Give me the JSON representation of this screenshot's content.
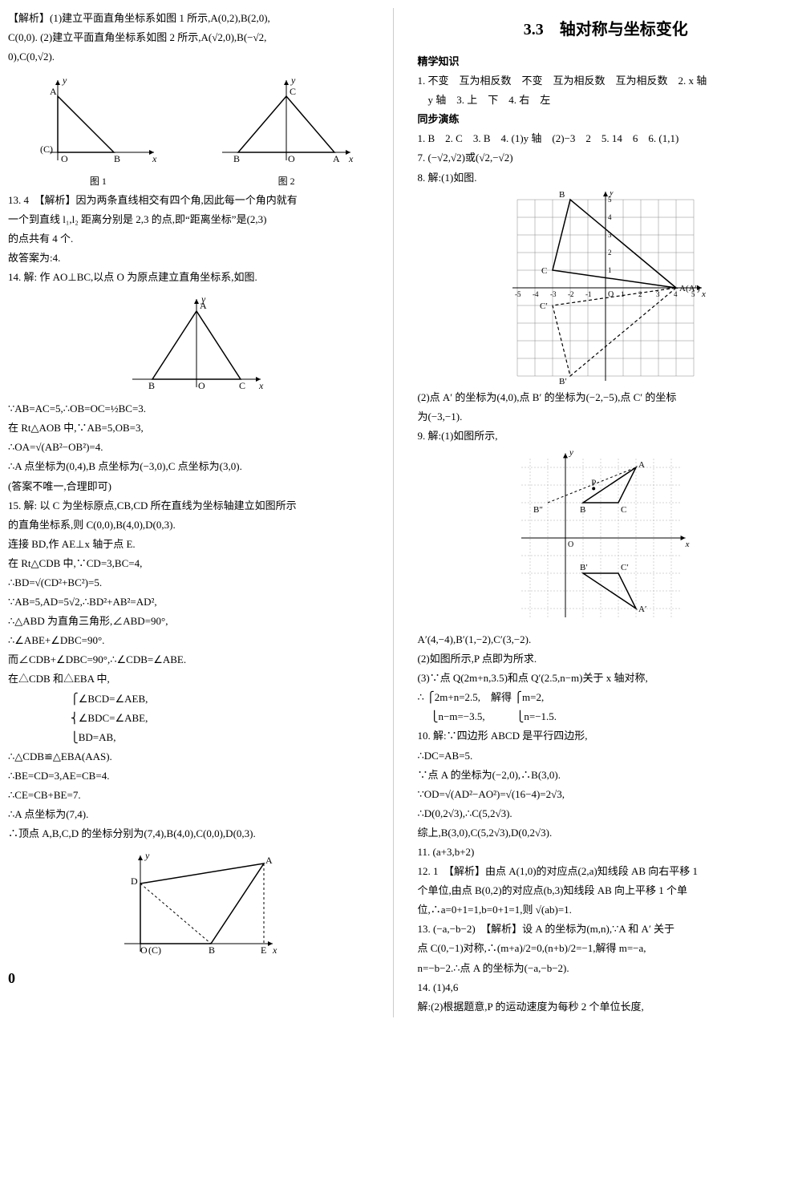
{
  "left": {
    "p1": "【解析】(1)建立平面直角坐标系如图 1 所示,A(0,2),B(2,0),",
    "p2": "C(0,0). (2)建立平面直角坐标系如图 2 所示,A(√2,0),B(−√2,",
    "p3": "0),C(0,√2).",
    "fig1_cap": "图 1",
    "fig2_cap": "图 2",
    "p13a": "13. 4　【解析】因为两条直线相交有四个角,因此每一个角内就有",
    "p13b": "一个到直线 l₁,l₂ 距离分别是 2,3 的点,即“距离坐标”是(2,3)",
    "p13c": "的点共有 4 个.",
    "p13d": "故答案为:4.",
    "p14a": "14. 解: 作 AO⊥BC,以点 O 为原点建立直角坐标系,如图.",
    "p14b": "∵AB=AC=5,∴OB=OC=½BC=3.",
    "p14c": "在 Rt△AOB 中,∵AB=5,OB=3,",
    "p14d": "∴OA=√(AB²−OB²)=4.",
    "p14e": "∴A 点坐标为(0,4),B 点坐标为(−3,0),C 点坐标为(3,0).",
    "p14f": "(答案不唯一,合理即可)",
    "p15a": "15. 解: 以 C 为坐标原点,CB,CD 所在直线为坐标轴建立如图所示",
    "p15b": "的直角坐标系,则 C(0,0),B(4,0),D(0,3).",
    "p15c": "连接 BD,作 AE⊥x 轴于点 E.",
    "p15d": "在 Rt△CDB 中,∵CD=3,BC=4,",
    "p15e": "∴BD=√(CD²+BC²)=5.",
    "p15f": "∵AB=5,AD=5√2,∴BD²+AB²=AD²,",
    "p15g": "∴△ABD 为直角三角形,∠ABD=90°,",
    "p15h": "∴∠ABE+∠DBC=90°.",
    "p15i": "而∠CDB+∠DBC=90°,∴∠CDB=∠ABE.",
    "p15j": "在△CDB 和△EBA 中,",
    "p15k": "⎧∠BCD=∠AEB,",
    "p15l": "⎨∠BDC=∠ABE,",
    "p15m": "⎩BD=AB,",
    "p15n": "∴△CDB≌△EBA(AAS).",
    "p15o": "∴BE=CD=3,AE=CB=4.",
    "p15p": "∴CE=CB+BE=7.",
    "p15q": "∴A 点坐标为(7,4).",
    "p15r": "∴顶点 A,B,C,D 的坐标分别为(7,4),B(4,0),C(0,0),D(0,3)."
  },
  "right": {
    "title": "3.3　轴对称与坐标变化",
    "jx_head": "精学知识",
    "jx1": "1. 不变　互为相反数　不变　互为相反数　互为相反数　2. x 轴",
    "jx2": "　y 轴　3. 上　下　4. 右　左",
    "tb_head": "同步演练",
    "tb1": "1. B　2. C　3. B　4. (1)y 轴　(2)−3　2　5. 14　6　6. (1,1)",
    "tb7": "7. (−√2,√2)或(√2,−√2)",
    "tb8a": "8. 解:(1)如图.",
    "tb8b": "(2)点 A′ 的坐标为(4,0),点 B′ 的坐标为(−2,−5),点 C′ 的坐标",
    "tb8c": "为(−3,−1).",
    "tb9a": "9. 解:(1)如图所示,",
    "tb9b": "A′(4,−4),B′(1,−2),C′(3,−2).",
    "tb9c": "(2)如图所示,P 点即为所求.",
    "tb9d": "(3)∵点 Q(2m+n,3.5)和点 Q′(2.5,n−m)关于 x 轴对称,",
    "tb9e": "∴ ⎧2m+n=2.5,　解得 ⎧m=2,",
    "tb9f": "　 ⎩n−m=−3.5,　　　⎩n=−1.5.",
    "tb10a": "10. 解:∵四边形 ABCD 是平行四边形,",
    "tb10b": "∴DC=AB=5.",
    "tb10c": "∵点 A 的坐标为(−2,0),∴B(3,0).",
    "tb10d": "∵OD=√(AD²−AO²)=√(16−4)=2√3,",
    "tb10e": "∴D(0,2√3),∴C(5,2√3).",
    "tb10f": "综上,B(3,0),C(5,2√3),D(0,2√3).",
    "tb11": "11. (a+3,b+2)",
    "tb12a": "12. 1　【解析】由点 A(1,0)的对应点(2,a)知线段 AB 向右平移 1",
    "tb12b": "个单位,由点 B(0,2)的对应点(b,3)知线段 AB 向上平移 1 个单",
    "tb12c": "位,∴a=0+1=1,b=0+1=1,则 √(ab)=1.",
    "tb13a": "13. (−a,−b−2)　【解析】设 A 的坐标为(m,n),∵A 和 A′ 关于",
    "tb13b": "点 C(0,−1)对称,∴(m+a)/2=0,(n+b)/2=−1,解得 m=−a,",
    "tb13c": "n=−b−2.∴点 A 的坐标为(−a,−b−2).",
    "tb14a": "14. (1)4,6",
    "tb14b": "解:(2)根据题意,P 的运动速度为每秒 2 个单位长度,"
  },
  "figures": {
    "fig1": {
      "axis_color": "#000",
      "line_color": "#000",
      "labels": {
        "A": "A",
        "B": "B",
        "C": "(C)",
        "O": "O",
        "x": "x",
        "y": "y"
      }
    },
    "fig2": {
      "labels": {
        "A": "A",
        "B": "B",
        "C": "C",
        "O": "O",
        "x": "x",
        "y": "y"
      }
    },
    "fig14": {
      "labels": {
        "A": "A",
        "B": "B",
        "C": "C",
        "O": "O",
        "x": "x",
        "y": "y"
      }
    },
    "fig8": {
      "grid_color": "#888",
      "line_solid": "#000",
      "line_dash": "#000",
      "labels": {
        "A": "A(A′)",
        "B": "B",
        "Bp": "B′",
        "C": "C",
        "Cp": "C′",
        "O": "O",
        "x": "x",
        "y": "y"
      },
      "xlim": [
        -5,
        5
      ],
      "ylim": [
        -5,
        5
      ],
      "A": [
        4,
        0
      ],
      "B": [
        -2,
        5
      ],
      "C": [
        -3,
        1
      ],
      "Bp": [
        -2,
        -5
      ],
      "Cp": [
        -3,
        -1
      ]
    },
    "fig9": {
      "grid_color": "#aaa",
      "line_solid": "#000",
      "line_dash": "#000",
      "labels": {
        "A": "A",
        "Ap": "A′",
        "B": "B",
        "Bp": "B′",
        "Bpp": "B″",
        "C": "C",
        "Cp": "C′",
        "O": "O",
        "x": "x",
        "y": "y",
        "P": "P"
      },
      "A": [
        4,
        4
      ],
      "B": [
        1,
        2
      ],
      "C": [
        3,
        2
      ],
      "Ap": [
        4,
        -4
      ],
      "Bp": [
        1,
        -2
      ],
      "Cp": [
        3,
        -2
      ],
      "Bpp": [
        -1,
        2
      ],
      "P": [
        1.6,
        2.8
      ]
    },
    "fig15": {
      "labels": {
        "A": "A",
        "B": "B",
        "C": "(C)",
        "D": "D",
        "E": "E",
        "O": "O",
        "x": "x",
        "y": "y"
      }
    }
  },
  "pagenum": "0"
}
